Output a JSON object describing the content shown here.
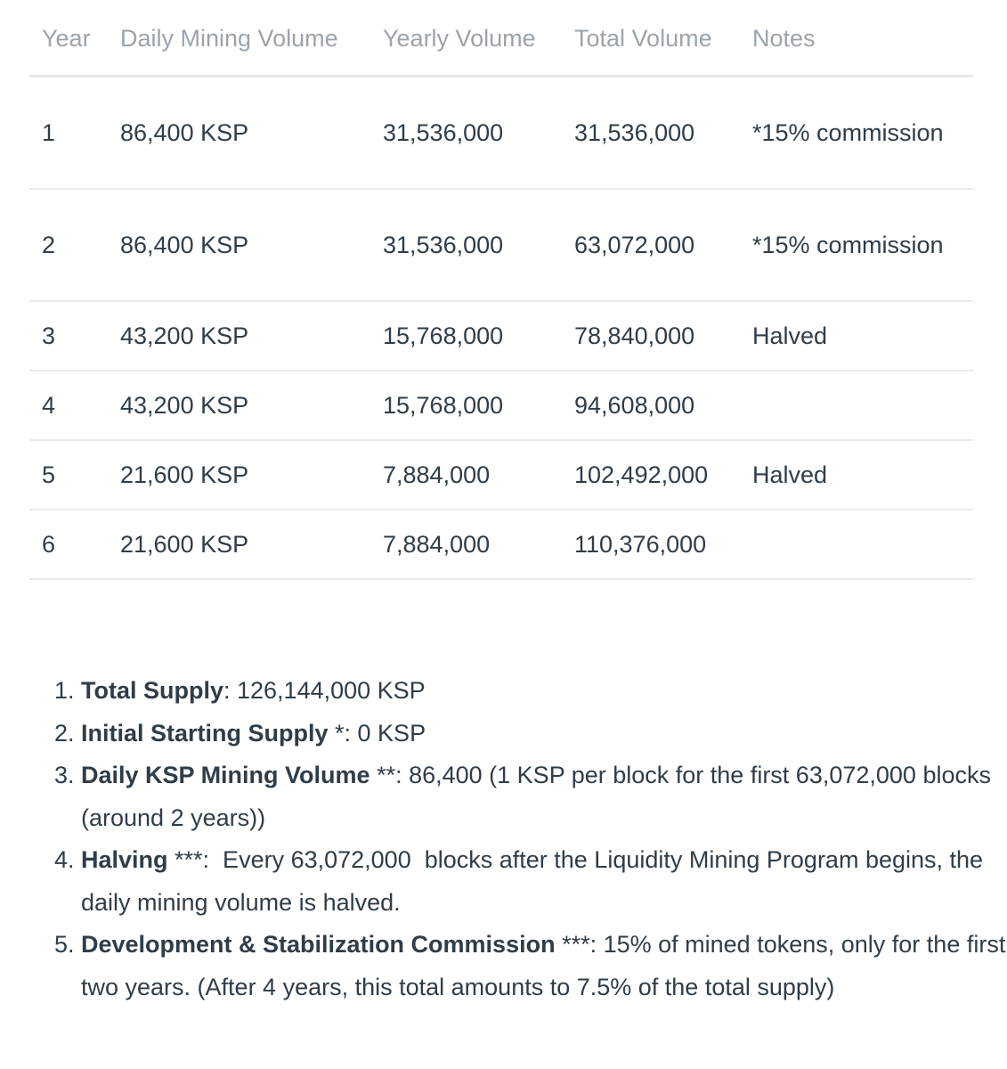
{
  "table": {
    "headers": [
      {
        "key": "year",
        "label": "Year"
      },
      {
        "key": "daily",
        "label": "Daily Mining Volume"
      },
      {
        "key": "yearly",
        "label": "Yearly Volume"
      },
      {
        "key": "total",
        "label": "Total Volume"
      },
      {
        "key": "notes",
        "label": "Notes"
      }
    ],
    "rows": [
      {
        "year": "1",
        "daily": "86,400 KSP",
        "yearly": "31,536,000",
        "total": "31,536,000",
        "notes": "*15% commission"
      },
      {
        "year": "2",
        "daily": "86,400 KSP",
        "yearly": "31,536,000",
        "total": "63,072,000",
        "notes": "*15% commission"
      },
      {
        "year": "3",
        "daily": "43,200 KSP",
        "yearly": "15,768,000",
        "total": "78,840,000",
        "notes": "Halved"
      },
      {
        "year": "4",
        "daily": "43,200 KSP",
        "yearly": "15,768,000",
        "total": "94,608,000",
        "notes": ""
      },
      {
        "year": "5",
        "daily": "21,600 KSP",
        "yearly": "7,884,000",
        "total": "102,492,000",
        "notes": "Halved"
      },
      {
        "year": "6",
        "daily": "21,600 KSP",
        "yearly": "7,884,000",
        "total": "110,376,000",
        "notes": ""
      }
    ]
  },
  "notes_list": [
    {
      "term": "Total Supply",
      "text": ": 126,144,000 KSP"
    },
    {
      "term": "Initial Starting Supply",
      "text": " *: 0 KSP"
    },
    {
      "term": "Daily KSP Mining Volume",
      "text": " **: 86,400 (1 KSP per block for the first 63,072,000 blocks (around 2 years))"
    },
    {
      "term": "Halving",
      "text": " ***:  Every 63,072,000  blocks after the Liquidity Mining Program begins, the daily mining volume is halved."
    },
    {
      "term": "Development & Stabilization Commission",
      "text": " ***: 15% of mined tokens, only for the first two years. (After 4 years, this total amounts to 7.5% of the total supply)"
    }
  ]
}
